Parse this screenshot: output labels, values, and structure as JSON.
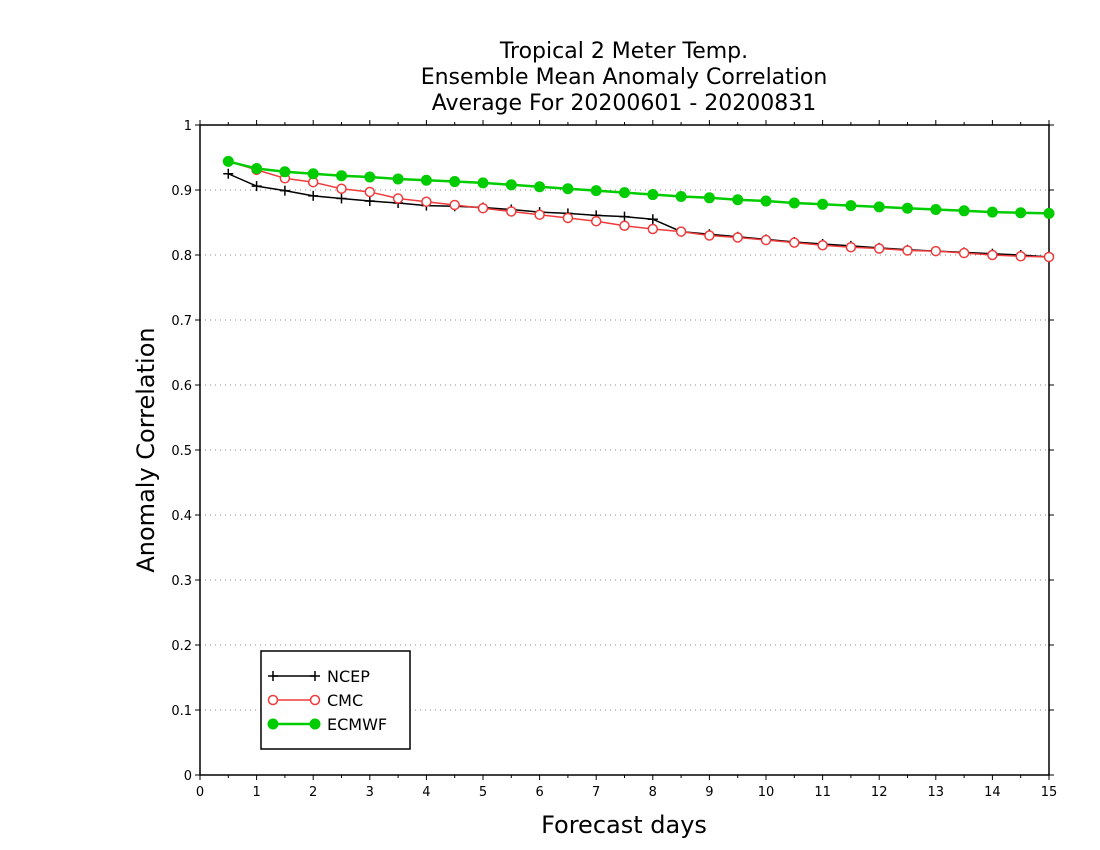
{
  "chart_data": {
    "type": "line",
    "title_lines": [
      "Tropical 2 Meter Temp.",
      "Ensemble Mean Anomaly Correlation",
      "Average For 20200601 - 20200831"
    ],
    "xlabel": "Forecast days",
    "ylabel": "Anomaly Correlation",
    "xlim": [
      0,
      15
    ],
    "ylim": [
      0,
      1
    ],
    "xticks": [
      "0",
      "1",
      "2",
      "3",
      "4",
      "5",
      "6",
      "7",
      "8",
      "9",
      "10",
      "11",
      "12",
      "13",
      "14",
      "15"
    ],
    "yticks": [
      "0",
      "0.1",
      "0.2",
      "0.3",
      "0.4",
      "0.5",
      "0.6",
      "0.7",
      "0.8",
      "0.9",
      "1"
    ],
    "grid": "horizontal dotted",
    "legend_position": "bottom-left",
    "x": [
      0.5,
      1,
      1.5,
      2,
      2.5,
      3,
      3.5,
      4,
      4.5,
      5,
      5.5,
      6,
      6.5,
      7,
      7.5,
      8,
      8.5,
      9,
      9.5,
      10,
      10.5,
      11,
      11.5,
      12,
      12.5,
      13,
      13.5,
      14,
      14.5,
      15
    ],
    "series": [
      {
        "name": "NCEP",
        "color": "#000000",
        "marker": "plus",
        "values": [
          0.925,
          0.906,
          0.899,
          0.891,
          0.887,
          0.883,
          0.88,
          0.876,
          0.875,
          0.873,
          0.87,
          0.866,
          0.864,
          0.861,
          0.859,
          0.855,
          0.836,
          0.832,
          0.828,
          0.824,
          0.82,
          0.817,
          0.814,
          0.811,
          0.808,
          0.806,
          0.804,
          0.802,
          0.8,
          0.797
        ]
      },
      {
        "name": "CMC",
        "color": "#ef3b3b",
        "marker": "open-circle",
        "values": [
          0.944,
          0.931,
          0.918,
          0.912,
          0.902,
          0.897,
          0.887,
          0.882,
          0.877,
          0.872,
          0.867,
          0.862,
          0.857,
          0.852,
          0.845,
          0.84,
          0.836,
          0.83,
          0.827,
          0.823,
          0.819,
          0.815,
          0.812,
          0.81,
          0.807,
          0.806,
          0.803,
          0.8,
          0.798,
          0.797
        ]
      },
      {
        "name": "ECMWF",
        "color": "#00cc00",
        "marker": "filled-circle",
        "values": [
          0.944,
          0.933,
          0.928,
          0.925,
          0.922,
          0.92,
          0.917,
          0.915,
          0.913,
          0.911,
          0.908,
          0.905,
          0.902,
          0.899,
          0.896,
          0.893,
          0.89,
          0.888,
          0.885,
          0.883,
          0.88,
          0.878,
          0.876,
          0.874,
          0.872,
          0.87,
          0.868,
          0.866,
          0.865,
          0.864
        ]
      }
    ]
  }
}
